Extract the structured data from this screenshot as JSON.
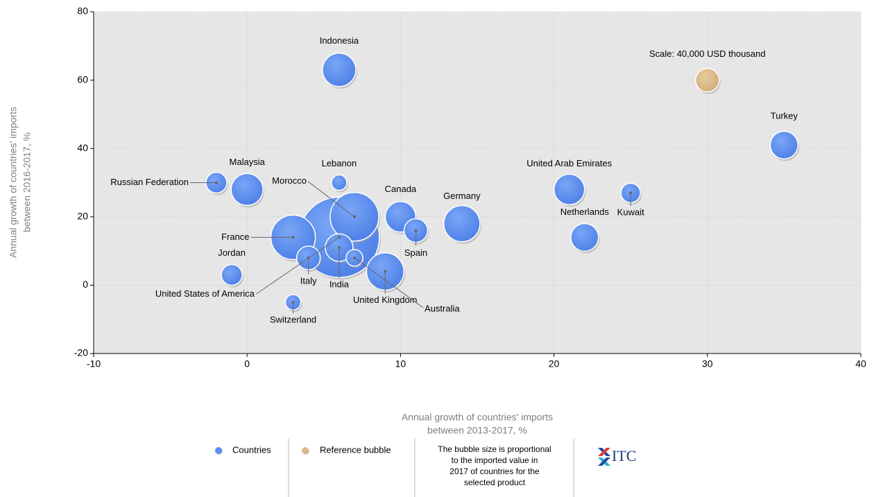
{
  "chart_data": {
    "type": "bubble",
    "xlabel": [
      "Annual growth of countries' imports",
      "between 2013-2017, %"
    ],
    "ylabel": [
      "Annual growth of countries' imports",
      "between 2016-2017, %"
    ],
    "xlim": [
      -10,
      40
    ],
    "xticks": [
      -10,
      0,
      10,
      20,
      30,
      40
    ],
    "ylim": [
      -20,
      80
    ],
    "yticks": [
      -20,
      0,
      20,
      40,
      60,
      80
    ],
    "grid": true,
    "series": [
      {
        "name": "Countries",
        "color": "#5b8ff0",
        "labels": [
          "Indonesia",
          "Turkey",
          "Malaysia",
          "Russian Federation",
          "Lebanon",
          "Morocco",
          "United States of America",
          "France",
          "India",
          "Canada",
          "Spain",
          "Germany",
          "Jordan",
          "Italy",
          "Australia",
          "United Kingdom",
          "Switzerland",
          "United Arab Emirates",
          "Netherlands",
          "Kuwait"
        ],
        "x": [
          6,
          35,
          0,
          -2,
          6,
          7,
          6,
          3,
          6,
          10,
          11,
          14,
          -1,
          4,
          7,
          9,
          3,
          21,
          22,
          25
        ],
        "values": [
          63,
          41,
          28,
          30,
          30,
          20,
          14,
          14,
          11,
          20,
          16,
          18,
          3,
          8,
          8,
          4,
          -5,
          28,
          14,
          27
        ],
        "sizes": [
          80000,
          55000,
          73000,
          31000,
          17000,
          170000,
          465000,
          142000,
          55000,
          67000,
          40000,
          94000,
          31000,
          40000,
          20000,
          100000,
          17000,
          67000,
          55000,
          27000
        ]
      },
      {
        "name": "Reference bubble",
        "color": "#dbb888",
        "labels": [
          "Scale: 40,000 USD thousand"
        ],
        "x": [
          30
        ],
        "values": [
          60
        ],
        "sizes": [
          40000
        ]
      }
    ],
    "note": [
      "The bubble size is proportional",
      "to the imported value in",
      "2017 of countries for the",
      "selected product"
    ],
    "logo": "ITC"
  }
}
